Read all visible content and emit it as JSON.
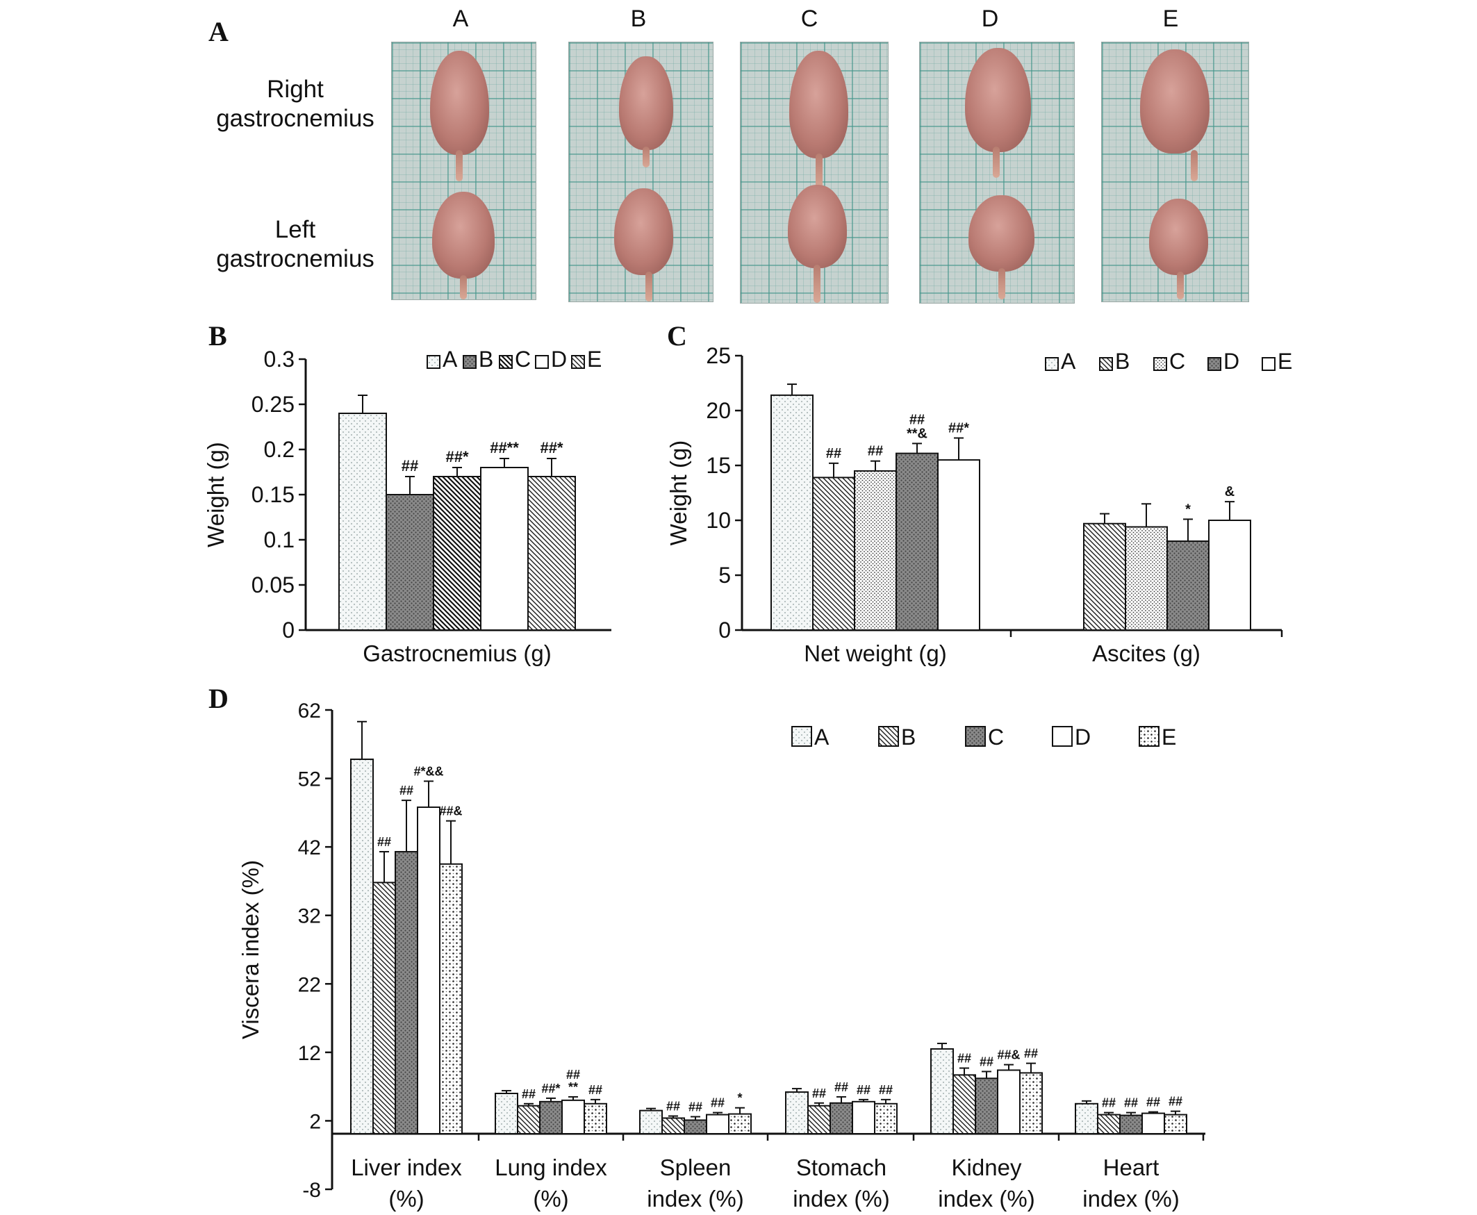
{
  "panels": {
    "a": "A",
    "b": "B",
    "c": "C",
    "d": "D"
  },
  "photo_panel": {
    "columns": [
      "A",
      "B",
      "C",
      "D",
      "E"
    ],
    "rows": [
      {
        "line1": "Right",
        "line2": "gastrocnemius"
      },
      {
        "line1": "Left",
        "line2": "gastrocnemius"
      }
    ]
  },
  "chart_data": [
    {
      "id": "B",
      "type": "bar",
      "ylabel": "Weight (g)",
      "categories": [
        "Gastrocnemius (g)"
      ],
      "ylim": [
        0,
        0.3
      ],
      "yticks": [
        "0",
        "0.05",
        "0.1",
        "0.15",
        "0.2",
        "0.25",
        "0.3"
      ],
      "legend": [
        "A",
        "B",
        "C",
        "D",
        "E"
      ],
      "legend_position": "top-right",
      "series": [
        {
          "name": "A",
          "values": [
            0.24
          ],
          "errors": [
            0.02
          ],
          "annotations": [
            ""
          ],
          "pattern": "dots-light"
        },
        {
          "name": "B",
          "values": [
            0.15
          ],
          "errors": [
            0.02
          ],
          "annotations": [
            "##"
          ],
          "pattern": "gray-dots"
        },
        {
          "name": "C",
          "values": [
            0.17
          ],
          "errors": [
            0.01
          ],
          "annotations": [
            "##*"
          ],
          "pattern": "diag-dense"
        },
        {
          "name": "D",
          "values": [
            0.18
          ],
          "errors": [
            0.01
          ],
          "annotations": [
            "##**"
          ],
          "pattern": "white"
        },
        {
          "name": "E",
          "values": [
            0.17
          ],
          "errors": [
            0.02
          ],
          "annotations": [
            "##*"
          ],
          "pattern": "diag-right"
        }
      ]
    },
    {
      "id": "C",
      "type": "bar",
      "ylabel": "Weight (g)",
      "categories": [
        "Net weight (g)",
        "Ascites (g)"
      ],
      "ylim": [
        0,
        25
      ],
      "yticks": [
        "0",
        "5",
        "10",
        "15",
        "20",
        "25"
      ],
      "legend": [
        "A",
        "B",
        "C",
        "D",
        "E"
      ],
      "legend_position": "top-right",
      "series": [
        {
          "name": "A",
          "values": [
            21.4,
            null
          ],
          "errors": [
            1.0,
            null
          ],
          "annotations": [
            "",
            ""
          ],
          "pattern": "dots-light"
        },
        {
          "name": "B",
          "values": [
            13.9,
            9.7
          ],
          "errors": [
            1.3,
            0.9
          ],
          "annotations": [
            "##",
            ""
          ],
          "pattern": "diag-right"
        },
        {
          "name": "C",
          "values": [
            14.5,
            9.4
          ],
          "errors": [
            0.9,
            2.1
          ],
          "annotations": [
            "##",
            ""
          ],
          "pattern": "dots-dense"
        },
        {
          "name": "D",
          "values": [
            16.1,
            8.1
          ],
          "errors": [
            0.9,
            2.0
          ],
          "annotations": [
            "##\n**&",
            "*"
          ],
          "pattern": "gray-dots"
        },
        {
          "name": "E",
          "values": [
            15.5,
            10.0
          ],
          "errors": [
            2.0,
            1.7
          ],
          "annotations": [
            "##*",
            "&"
          ],
          "pattern": "white"
        }
      ]
    },
    {
      "id": "D",
      "type": "bar",
      "ylabel": "Viscera index (%)",
      "categories": [
        "Liver index\n(%)",
        "Lung index\n(%)",
        "Spleen\nindex (%)",
        "Stomach\nindex (%)",
        "Kidney\nindex (%)",
        "Heart\nindex (%)"
      ],
      "ylim": [
        -8,
        62
      ],
      "yticks": [
        "-8",
        "2",
        "12",
        "22",
        "32",
        "42",
        "52",
        "62"
      ],
      "legend": [
        "A",
        "B",
        "C",
        "D",
        "E"
      ],
      "legend_position": "top-right",
      "series": [
        {
          "name": "A",
          "values": [
            54.8,
            6.0,
            3.5,
            6.2,
            12.5,
            4.5
          ],
          "errors": [
            5.5,
            0.4,
            0.3,
            0.5,
            0.8,
            0.4
          ],
          "annotations": [
            "",
            "",
            "",
            "",
            "",
            ""
          ],
          "pattern": "dots-light"
        },
        {
          "name": "B",
          "values": [
            36.8,
            4.2,
            2.4,
            4.2,
            8.7,
            2.9
          ],
          "errors": [
            4.5,
            0.3,
            0.3,
            0.4,
            1.0,
            0.3
          ],
          "annotations": [
            "##",
            "##",
            "##",
            "##",
            "##",
            "##"
          ],
          "pattern": "diag-right"
        },
        {
          "name": "C",
          "values": [
            41.3,
            4.8,
            2.1,
            4.6,
            8.2,
            2.8
          ],
          "errors": [
            7.5,
            0.5,
            0.5,
            0.9,
            1.0,
            0.4
          ],
          "annotations": [
            "##",
            "##*",
            "##",
            "##",
            "##",
            "##"
          ],
          "pattern": "gray-dots"
        },
        {
          "name": "D",
          "values": [
            47.8,
            5.0,
            2.9,
            4.8,
            9.4,
            3.1
          ],
          "errors": [
            3.8,
            0.5,
            0.3,
            0.3,
            0.8,
            0.2
          ],
          "annotations": [
            "#*&&",
            "##\n**",
            "##",
            "##",
            "##&",
            "##"
          ],
          "pattern": "white"
        },
        {
          "name": "E",
          "values": [
            39.5,
            4.5,
            3.0,
            4.5,
            9.0,
            2.9
          ],
          "errors": [
            6.3,
            0.6,
            0.9,
            0.6,
            1.4,
            0.5
          ],
          "annotations": [
            "##&",
            "##",
            "*",
            "##",
            "##",
            "##"
          ],
          "pattern": "checker"
        }
      ]
    }
  ]
}
